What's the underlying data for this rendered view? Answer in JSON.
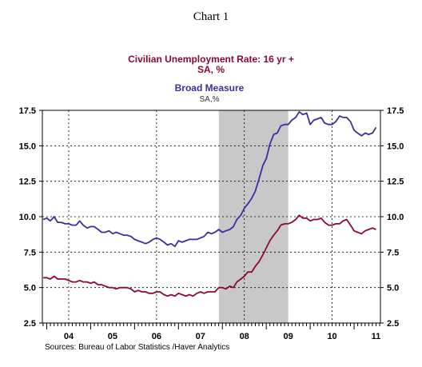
{
  "header": {
    "title": "Chart 1",
    "series1_title": "Civilian Unemployment Rate: 16 yr +",
    "series1_sub": "SA, %",
    "series2_title": "Broad Measure",
    "series2_sub": "SA,%",
    "source": "Sources:  Bureau of Labor Statistics /Haver Analytics"
  },
  "chart_data": {
    "type": "line",
    "title": "",
    "ylim": [
      2.5,
      17.5
    ],
    "y_ticks": [
      "2.5",
      "5.0",
      "7.5",
      "10.0",
      "12.5",
      "15.0",
      "17.5"
    ],
    "x_start_year": 2003.9,
    "x_end_year": 2011.6,
    "x_labels": [
      {
        "label": "04",
        "year": 2004
      },
      {
        "label": "05",
        "year": 2005
      },
      {
        "label": "06",
        "year": 2006
      },
      {
        "label": "07",
        "year": 2007
      },
      {
        "label": "08",
        "year": 2008
      },
      {
        "label": "09",
        "year": 2009
      },
      {
        "label": "10",
        "year": 2010
      },
      {
        "label": "11",
        "year": 2011
      }
    ],
    "vgrid_years": [
      2004.5,
      2006.5,
      2008.5,
      2010.5
    ],
    "recession": {
      "start": 2007.92,
      "end": 2009.5
    },
    "grid": true,
    "colors": {
      "unemployment": "#8b0a2e",
      "broad": "#3a2f9e",
      "recession": "#c8c8c8"
    },
    "series": [
      {
        "name": "Civilian Unemployment Rate: 16 yr +",
        "key": "unemployment",
        "points": [
          [
            2003.92,
            5.7
          ],
          [
            2004.0,
            5.7
          ],
          [
            2004.08,
            5.6
          ],
          [
            2004.17,
            5.8
          ],
          [
            2004.25,
            5.6
          ],
          [
            2004.33,
            5.6
          ],
          [
            2004.42,
            5.6
          ],
          [
            2004.5,
            5.5
          ],
          [
            2004.58,
            5.4
          ],
          [
            2004.67,
            5.4
          ],
          [
            2004.75,
            5.5
          ],
          [
            2004.83,
            5.4
          ],
          [
            2004.92,
            5.4
          ],
          [
            2005.0,
            5.3
          ],
          [
            2005.08,
            5.4
          ],
          [
            2005.17,
            5.2
          ],
          [
            2005.25,
            5.2
          ],
          [
            2005.33,
            5.1
          ],
          [
            2005.42,
            5.0
          ],
          [
            2005.5,
            5.0
          ],
          [
            2005.58,
            4.9
          ],
          [
            2005.67,
            5.0
          ],
          [
            2005.75,
            5.0
          ],
          [
            2005.83,
            5.0
          ],
          [
            2005.92,
            4.9
          ],
          [
            2006.0,
            4.7
          ],
          [
            2006.08,
            4.8
          ],
          [
            2006.17,
            4.7
          ],
          [
            2006.25,
            4.7
          ],
          [
            2006.33,
            4.6
          ],
          [
            2006.42,
            4.6
          ],
          [
            2006.5,
            4.7
          ],
          [
            2006.58,
            4.7
          ],
          [
            2006.67,
            4.5
          ],
          [
            2006.75,
            4.4
          ],
          [
            2006.83,
            4.5
          ],
          [
            2006.92,
            4.4
          ],
          [
            2007.0,
            4.6
          ],
          [
            2007.08,
            4.5
          ],
          [
            2007.17,
            4.4
          ],
          [
            2007.25,
            4.5
          ],
          [
            2007.33,
            4.4
          ],
          [
            2007.42,
            4.6
          ],
          [
            2007.5,
            4.7
          ],
          [
            2007.58,
            4.6
          ],
          [
            2007.67,
            4.7
          ],
          [
            2007.75,
            4.7
          ],
          [
            2007.83,
            4.7
          ],
          [
            2007.92,
            5.0
          ],
          [
            2008.0,
            5.0
          ],
          [
            2008.08,
            4.9
          ],
          [
            2008.17,
            5.1
          ],
          [
            2008.25,
            5.0
          ],
          [
            2008.33,
            5.4
          ],
          [
            2008.42,
            5.6
          ],
          [
            2008.5,
            5.8
          ],
          [
            2008.58,
            6.1
          ],
          [
            2008.67,
            6.1
          ],
          [
            2008.75,
            6.5
          ],
          [
            2008.83,
            6.8
          ],
          [
            2008.92,
            7.3
          ],
          [
            2009.0,
            7.8
          ],
          [
            2009.08,
            8.3
          ],
          [
            2009.17,
            8.7
          ],
          [
            2009.25,
            9.0
          ],
          [
            2009.33,
            9.4
          ],
          [
            2009.42,
            9.5
          ],
          [
            2009.5,
            9.5
          ],
          [
            2009.58,
            9.6
          ],
          [
            2009.67,
            9.8
          ],
          [
            2009.75,
            10.1
          ],
          [
            2009.83,
            9.9
          ],
          [
            2009.92,
            9.9
          ],
          [
            2010.0,
            9.7
          ],
          [
            2010.08,
            9.8
          ],
          [
            2010.17,
            9.8
          ],
          [
            2010.25,
            9.9
          ],
          [
            2010.33,
            9.6
          ],
          [
            2010.42,
            9.4
          ],
          [
            2010.5,
            9.4
          ],
          [
            2010.58,
            9.5
          ],
          [
            2010.67,
            9.5
          ],
          [
            2010.75,
            9.7
          ],
          [
            2010.83,
            9.8
          ],
          [
            2010.92,
            9.4
          ],
          [
            2011.0,
            9.0
          ],
          [
            2011.08,
            8.9
          ],
          [
            2011.17,
            8.8
          ],
          [
            2011.25,
            9.0
          ],
          [
            2011.33,
            9.1
          ],
          [
            2011.42,
            9.2
          ],
          [
            2011.5,
            9.1
          ]
        ]
      },
      {
        "name": "Broad Measure",
        "key": "broad",
        "points": [
          [
            2003.92,
            9.8
          ],
          [
            2004.0,
            9.9
          ],
          [
            2004.08,
            9.7
          ],
          [
            2004.17,
            10.0
          ],
          [
            2004.25,
            9.6
          ],
          [
            2004.33,
            9.6
          ],
          [
            2004.42,
            9.5
          ],
          [
            2004.5,
            9.5
          ],
          [
            2004.58,
            9.4
          ],
          [
            2004.67,
            9.4
          ],
          [
            2004.75,
            9.7
          ],
          [
            2004.83,
            9.4
          ],
          [
            2004.92,
            9.2
          ],
          [
            2005.0,
            9.3
          ],
          [
            2005.08,
            9.3
          ],
          [
            2005.17,
            9.1
          ],
          [
            2005.25,
            8.9
          ],
          [
            2005.33,
            8.9
          ],
          [
            2005.42,
            9.0
          ],
          [
            2005.5,
            8.8
          ],
          [
            2005.58,
            8.9
          ],
          [
            2005.67,
            8.8
          ],
          [
            2005.75,
            8.7
          ],
          [
            2005.83,
            8.7
          ],
          [
            2005.92,
            8.6
          ],
          [
            2006.0,
            8.4
          ],
          [
            2006.08,
            8.3
          ],
          [
            2006.17,
            8.2
          ],
          [
            2006.25,
            8.1
          ],
          [
            2006.33,
            8.2
          ],
          [
            2006.42,
            8.4
          ],
          [
            2006.5,
            8.5
          ],
          [
            2006.58,
            8.4
          ],
          [
            2006.67,
            8.2
          ],
          [
            2006.75,
            8.0
          ],
          [
            2006.83,
            8.1
          ],
          [
            2006.92,
            7.9
          ],
          [
            2007.0,
            8.3
          ],
          [
            2007.08,
            8.2
          ],
          [
            2007.17,
            8.3
          ],
          [
            2007.25,
            8.4
          ],
          [
            2007.33,
            8.4
          ],
          [
            2007.42,
            8.4
          ],
          [
            2007.5,
            8.5
          ],
          [
            2007.58,
            8.6
          ],
          [
            2007.67,
            8.9
          ],
          [
            2007.75,
            8.8
          ],
          [
            2007.83,
            8.9
          ],
          [
            2007.92,
            9.1
          ],
          [
            2008.0,
            8.9
          ],
          [
            2008.08,
            9.0
          ],
          [
            2008.17,
            9.1
          ],
          [
            2008.25,
            9.3
          ],
          [
            2008.33,
            9.8
          ],
          [
            2008.42,
            10.1
          ],
          [
            2008.5,
            10.6
          ],
          [
            2008.58,
            10.9
          ],
          [
            2008.67,
            11.3
          ],
          [
            2008.75,
            11.8
          ],
          [
            2008.83,
            12.6
          ],
          [
            2008.92,
            13.6
          ],
          [
            2009.0,
            14.1
          ],
          [
            2009.08,
            15.1
          ],
          [
            2009.17,
            15.8
          ],
          [
            2009.25,
            15.9
          ],
          [
            2009.33,
            16.4
          ],
          [
            2009.42,
            16.5
          ],
          [
            2009.5,
            16.5
          ],
          [
            2009.58,
            16.8
          ],
          [
            2009.67,
            17.0
          ],
          [
            2009.75,
            17.4
          ],
          [
            2009.83,
            17.2
          ],
          [
            2009.92,
            17.3
          ],
          [
            2010.0,
            16.5
          ],
          [
            2010.08,
            16.8
          ],
          [
            2010.17,
            16.9
          ],
          [
            2010.25,
            17.0
          ],
          [
            2010.33,
            16.6
          ],
          [
            2010.42,
            16.5
          ],
          [
            2010.5,
            16.5
          ],
          [
            2010.58,
            16.7
          ],
          [
            2010.67,
            17.1
          ],
          [
            2010.75,
            17.0
          ],
          [
            2010.83,
            17.0
          ],
          [
            2010.92,
            16.7
          ],
          [
            2011.0,
            16.1
          ],
          [
            2011.08,
            15.9
          ],
          [
            2011.17,
            15.7
          ],
          [
            2011.25,
            15.9
          ],
          [
            2011.33,
            15.8
          ],
          [
            2011.42,
            15.9
          ],
          [
            2011.5,
            16.3
          ]
        ]
      }
    ]
  }
}
